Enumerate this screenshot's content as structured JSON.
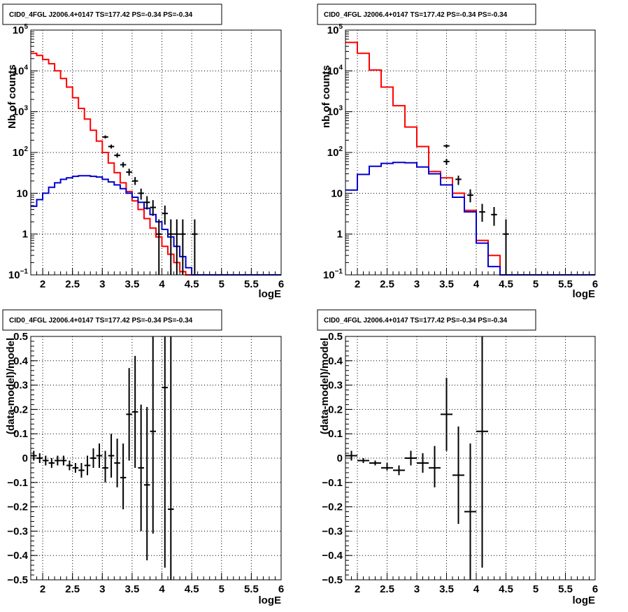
{
  "chart_data": [
    {
      "id": "top-left",
      "type": "line",
      "title": "CID0_4FGL J2006.4+0147 TS=177.42 PS=-0.34 PS=-0.34",
      "xlabel": "logE",
      "ylabel": "Nb of counts",
      "xlim": [
        1.8,
        6.0
      ],
      "ylim": [
        0.1,
        100000
      ],
      "yscale": "log",
      "grid": true,
      "x_ticks": [
        "2",
        "2.5",
        "3",
        "3.5",
        "4",
        "4.5",
        "5",
        "5.5",
        "6"
      ],
      "y_ticks": [
        {
          "base": "10",
          "exp": "−1"
        },
        {
          "base": "1",
          "exp": ""
        },
        {
          "base": "10",
          "exp": ""
        },
        {
          "base": "10",
          "exp": "2"
        },
        {
          "base": "10",
          "exp": "3"
        },
        {
          "base": "10",
          "exp": "4"
        },
        {
          "base": "10",
          "exp": "5"
        }
      ],
      "bin_edges": [
        1.8,
        1.9,
        2.0,
        2.1,
        2.2,
        2.3,
        2.4,
        2.5,
        2.6,
        2.7,
        2.8,
        2.9,
        3.0,
        3.1,
        3.2,
        3.3,
        3.4,
        3.5,
        3.6,
        3.7,
        3.8,
        3.9,
        4.0,
        4.1,
        4.2,
        4.3,
        4.4,
        4.5,
        4.6,
        4.7,
        4.8,
        4.9,
        5.0,
        5.1,
        5.2,
        5.3,
        5.4,
        5.5,
        5.6,
        5.7,
        5.8,
        5.9,
        6.0
      ],
      "series": [
        {
          "color": "#ff0000",
          "values": [
            27000,
            24000,
            19000,
            15000,
            10000,
            6500,
            4000,
            2200,
            1200,
            660,
            350,
            190,
            100,
            55,
            32,
            18,
            11,
            6.5,
            4,
            2.4,
            1.4,
            0.85,
            0.5,
            0.32,
            0.2,
            0.12,
            0.1,
            0.1,
            0.1,
            0.1,
            0.1,
            0.1,
            0.1,
            0.1,
            0.1,
            0.1,
            0.1,
            0.1,
            0.1,
            0.1,
            0.1,
            0.1
          ]
        },
        {
          "color": "#0000cc",
          "values": [
            4.8,
            7,
            10,
            14,
            18,
            22,
            24,
            26,
            27,
            27,
            26,
            25,
            22,
            19,
            16,
            13,
            10,
            8,
            6,
            4.3,
            3,
            2,
            1.3,
            0.85,
            0.5,
            0.28,
            0.15,
            0.1,
            0.1,
            0.1,
            0.1,
            0.1,
            0.1,
            0.1,
            0.1,
            0.1,
            0.1,
            0.1,
            0.1,
            0.1,
            0.1,
            0.1
          ]
        }
      ],
      "points": [
        {
          "x": 3.05,
          "y": 240,
          "lo": 220,
          "hi": 262
        },
        {
          "x": 3.15,
          "y": 140,
          "lo": 125,
          "hi": 156
        },
        {
          "x": 3.25,
          "y": 85,
          "lo": 75,
          "hi": 96
        },
        {
          "x": 3.35,
          "y": 50,
          "lo": 43,
          "hi": 58
        },
        {
          "x": 3.45,
          "y": 33,
          "lo": 27,
          "hi": 40
        },
        {
          "x": 3.55,
          "y": 20,
          "lo": 16,
          "hi": 25
        },
        {
          "x": 3.65,
          "y": 10,
          "lo": 7,
          "hi": 13
        },
        {
          "x": 3.75,
          "y": 6,
          "lo": 4,
          "hi": 8.5
        },
        {
          "x": 3.85,
          "y": 4.5,
          "lo": 2.8,
          "hi": 6.8
        },
        {
          "x": 3.95,
          "y": 1,
          "lo": 0.1,
          "hi": 2.3
        },
        {
          "x": 4.05,
          "y": 3.2,
          "lo": 1.7,
          "hi": 5
        },
        {
          "x": 4.15,
          "y": 1,
          "lo": 0.1,
          "hi": 2.3
        },
        {
          "x": 4.25,
          "y": 1,
          "lo": 0.1,
          "hi": 2.3
        },
        {
          "x": 4.35,
          "y": 1,
          "lo": 0.1,
          "hi": 2.3
        },
        {
          "x": 4.55,
          "y": 1,
          "lo": 0.1,
          "hi": 2.3
        }
      ]
    },
    {
      "id": "top-right",
      "type": "line",
      "title": "CID0_4FGL J2006.4+0147 TS=177.42 PS=-0.34 PS=-0.34",
      "xlabel": "logE",
      "ylabel": "nb of counts",
      "xlim": [
        1.8,
        6.0
      ],
      "ylim": [
        0.1,
        100000
      ],
      "yscale": "log",
      "grid": true,
      "x_ticks": [
        "2",
        "2.5",
        "3",
        "3.5",
        "4",
        "4.5",
        "5",
        "5.5",
        "6"
      ],
      "y_ticks": [
        {
          "base": "10",
          "exp": "−1"
        },
        {
          "base": "1",
          "exp": ""
        },
        {
          "base": "10",
          "exp": ""
        },
        {
          "base": "10",
          "exp": "2"
        },
        {
          "base": "10",
          "exp": "3"
        },
        {
          "base": "10",
          "exp": "4"
        },
        {
          "base": "10",
          "exp": "5"
        }
      ],
      "bin_edges": [
        1.8,
        2.0,
        2.2,
        2.4,
        2.6,
        2.8,
        3.0,
        3.2,
        3.4,
        3.6,
        3.8,
        4.0,
        4.2,
        4.4,
        4.6,
        4.8,
        5.0,
        5.2,
        5.4,
        5.6,
        5.8,
        6.0
      ],
      "series": [
        {
          "color": "#ff0000",
          "values": [
            50000,
            27000,
            10500,
            4000,
            1400,
            420,
            140,
            34,
            24,
            10,
            3.8,
            0.7,
            0.3,
            0.1,
            0.1,
            0.1,
            0.1,
            0.1,
            0.1,
            0.1,
            0.1
          ]
        },
        {
          "color": "#0000cc",
          "values": [
            12,
            29,
            46,
            54,
            57,
            56,
            44,
            30,
            16,
            8,
            3.5,
            0.6,
            0.16,
            0.1,
            0.1,
            0.1,
            0.1,
            0.1,
            0.1,
            0.1,
            0.1
          ]
        }
      ],
      "points": [
        {
          "x": 3.5,
          "y": 145,
          "lo": 131,
          "hi": 158
        },
        {
          "x": 3.5,
          "y": 60,
          "lo": 50,
          "hi": 70
        },
        {
          "x": 3.7,
          "y": 22,
          "lo": 16,
          "hi": 27
        },
        {
          "x": 3.9,
          "y": 9,
          "lo": 6,
          "hi": 12.5
        },
        {
          "x": 4.1,
          "y": 3.5,
          "lo": 2,
          "hi": 5.5
        },
        {
          "x": 4.3,
          "y": 3,
          "lo": 1.6,
          "hi": 4.6
        },
        {
          "x": 4.5,
          "y": 1,
          "lo": 0.1,
          "hi": 2.3
        }
      ]
    },
    {
      "id": "bottom-left",
      "type": "scatter",
      "title": "CID0_4FGL J2006.4+0147 TS=177.42 PS=-0.34 PS=-0.34",
      "xlabel": "logE",
      "ylabel": "(data-model)/model",
      "xlim": [
        1.8,
        6.0
      ],
      "ylim": [
        -0.5,
        0.5
      ],
      "yscale": "linear",
      "grid": true,
      "x_ticks": [
        "2",
        "2.5",
        "3",
        "3.5",
        "4",
        "4.5",
        "5",
        "5.5",
        "6"
      ],
      "y_ticks": [
        "−0.5",
        "−0.4",
        "−0.3",
        "−0.2",
        "−0.1",
        "0",
        "0.1",
        "0.2",
        "0.3",
        "0.4",
        "0.5"
      ],
      "points": [
        {
          "x": 1.85,
          "y": 0.01,
          "lo": -0.01,
          "hi": 0.03,
          "hw": 0.05
        },
        {
          "x": 1.95,
          "y": 0.0,
          "lo": -0.02,
          "hi": 0.02,
          "hw": 0.05
        },
        {
          "x": 2.05,
          "y": -0.01,
          "lo": -0.03,
          "hi": 0.01,
          "hw": 0.05
        },
        {
          "x": 2.15,
          "y": -0.02,
          "lo": -0.04,
          "hi": 0.0,
          "hw": 0.05
        },
        {
          "x": 2.25,
          "y": -0.01,
          "lo": -0.03,
          "hi": 0.01,
          "hw": 0.05
        },
        {
          "x": 2.35,
          "y": -0.01,
          "lo": -0.03,
          "hi": 0.01,
          "hw": 0.05
        },
        {
          "x": 2.45,
          "y": -0.03,
          "lo": -0.05,
          "hi": -0.01,
          "hw": 0.05
        },
        {
          "x": 2.55,
          "y": -0.04,
          "lo": -0.06,
          "hi": -0.02,
          "hw": 0.05
        },
        {
          "x": 2.65,
          "y": -0.05,
          "lo": -0.08,
          "hi": -0.02,
          "hw": 0.05
        },
        {
          "x": 2.75,
          "y": -0.03,
          "lo": -0.07,
          "hi": 0.01,
          "hw": 0.05
        },
        {
          "x": 2.85,
          "y": 0.0,
          "lo": -0.04,
          "hi": 0.04,
          "hw": 0.05
        },
        {
          "x": 2.95,
          "y": 0.01,
          "lo": -0.04,
          "hi": 0.06,
          "hw": 0.05
        },
        {
          "x": 3.05,
          "y": -0.04,
          "lo": -0.1,
          "hi": 0.03,
          "hw": 0.05
        },
        {
          "x": 3.15,
          "y": 0.01,
          "lo": -0.08,
          "hi": 0.1,
          "hw": 0.05
        },
        {
          "x": 3.25,
          "y": -0.02,
          "lo": -0.12,
          "hi": 0.08,
          "hw": 0.05
        },
        {
          "x": 3.35,
          "y": -0.08,
          "lo": -0.21,
          "hi": 0.06,
          "hw": 0.05
        },
        {
          "x": 3.45,
          "y": 0.18,
          "lo": -0.01,
          "hi": 0.37,
          "hw": 0.05
        },
        {
          "x": 3.55,
          "y": 0.19,
          "lo": -0.04,
          "hi": 0.42,
          "hw": 0.05
        },
        {
          "x": 3.65,
          "y": -0.04,
          "lo": -0.3,
          "hi": 0.22,
          "hw": 0.05
        },
        {
          "x": 3.75,
          "y": -0.11,
          "lo": -0.42,
          "hi": 0.21,
          "hw": 0.05
        },
        {
          "x": 3.85,
          "y": 0.11,
          "lo": -0.31,
          "hi": 0.5,
          "hw": 0.05
        },
        {
          "x": 4.05,
          "y": 0.29,
          "lo": -0.45,
          "hi": 0.5,
          "hw": 0.05
        },
        {
          "x": 4.15,
          "y": -0.21,
          "lo": -0.5,
          "hi": 0.5,
          "hw": 0.05
        }
      ]
    },
    {
      "id": "bottom-right",
      "type": "scatter",
      "title": "CID0_4FGL J2006.4+0147 TS=177.42 PS=-0.34 PS=-0.34",
      "xlabel": "logE",
      "ylabel": "(data-model)/model",
      "xlim": [
        1.8,
        6.0
      ],
      "ylim": [
        -0.5,
        0.5
      ],
      "yscale": "linear",
      "grid": true,
      "x_ticks": [
        "2",
        "2.5",
        "3",
        "3.5",
        "4",
        "4.5",
        "5",
        "5.5",
        "6"
      ],
      "y_ticks": [
        "−0.5",
        "−0.4",
        "−0.3",
        "−0.2",
        "−0.1",
        "0",
        "0.1",
        "0.2",
        "0.3",
        "0.4",
        "0.5"
      ],
      "points": [
        {
          "x": 1.9,
          "y": 0.01,
          "lo": -0.01,
          "hi": 0.03,
          "hw": 0.1
        },
        {
          "x": 2.1,
          "y": -0.01,
          "lo": -0.02,
          "hi": 0.0,
          "hw": 0.1
        },
        {
          "x": 2.3,
          "y": -0.02,
          "lo": -0.03,
          "hi": -0.01,
          "hw": 0.1
        },
        {
          "x": 2.5,
          "y": -0.04,
          "lo": -0.05,
          "hi": -0.02,
          "hw": 0.1
        },
        {
          "x": 2.7,
          "y": -0.05,
          "lo": -0.07,
          "hi": -0.03,
          "hw": 0.1
        },
        {
          "x": 2.9,
          "y": 0.0,
          "lo": -0.03,
          "hi": 0.03,
          "hw": 0.1
        },
        {
          "x": 3.1,
          "y": -0.02,
          "lo": -0.06,
          "hi": 0.02,
          "hw": 0.1
        },
        {
          "x": 3.3,
          "y": -0.04,
          "lo": -0.12,
          "hi": 0.05,
          "hw": 0.1
        },
        {
          "x": 3.5,
          "y": 0.18,
          "lo": 0.03,
          "hi": 0.33,
          "hw": 0.1
        },
        {
          "x": 3.7,
          "y": -0.07,
          "lo": -0.27,
          "hi": 0.13,
          "hw": 0.1
        },
        {
          "x": 3.9,
          "y": -0.22,
          "lo": -0.5,
          "hi": 0.06,
          "hw": 0.1
        },
        {
          "x": 4.1,
          "y": 0.11,
          "lo": -0.45,
          "hi": 0.5,
          "hw": 0.1
        }
      ]
    }
  ]
}
